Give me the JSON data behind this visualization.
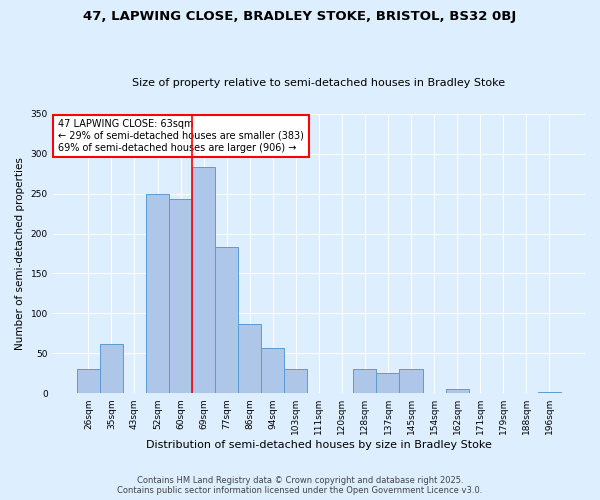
{
  "title": "47, LAPWING CLOSE, BRADLEY STOKE, BRISTOL, BS32 0BJ",
  "subtitle": "Size of property relative to semi-detached houses in Bradley Stoke",
  "xlabel": "Distribution of semi-detached houses by size in Bradley Stoke",
  "ylabel": "Number of semi-detached properties",
  "categories": [
    "26sqm",
    "35sqm",
    "43sqm",
    "52sqm",
    "60sqm",
    "69sqm",
    "77sqm",
    "86sqm",
    "94sqm",
    "103sqm",
    "111sqm",
    "120sqm",
    "128sqm",
    "137sqm",
    "145sqm",
    "154sqm",
    "162sqm",
    "171sqm",
    "179sqm",
    "188sqm",
    "196sqm"
  ],
  "values": [
    30,
    62,
    0,
    250,
    243,
    283,
    183,
    87,
    57,
    30,
    0,
    0,
    30,
    25,
    30,
    0,
    5,
    0,
    0,
    0,
    2
  ],
  "bar_color": "#aec6e8",
  "bar_edge_color": "#5b9bd5",
  "background_color": "#ddeeff",
  "grid_color": "#ffffff",
  "redline_x": 4.5,
  "annotation_text_line1": "47 LAPWING CLOSE: 63sqm",
  "annotation_text_line2": "← 29% of semi-detached houses are smaller (383)",
  "annotation_text_line3": "69% of semi-detached houses are larger (906) →",
  "footer_line1": "Contains HM Land Registry data © Crown copyright and database right 2025.",
  "footer_line2": "Contains public sector information licensed under the Open Government Licence v3.0.",
  "ylim": [
    0,
    350
  ],
  "yticks": [
    0,
    50,
    100,
    150,
    200,
    250,
    300,
    350
  ],
  "title_fontsize": 9.5,
  "subtitle_fontsize": 8,
  "ylabel_fontsize": 7.5,
  "xlabel_fontsize": 8,
  "tick_fontsize": 6.5,
  "ann_fontsize": 7,
  "footer_fontsize": 6
}
